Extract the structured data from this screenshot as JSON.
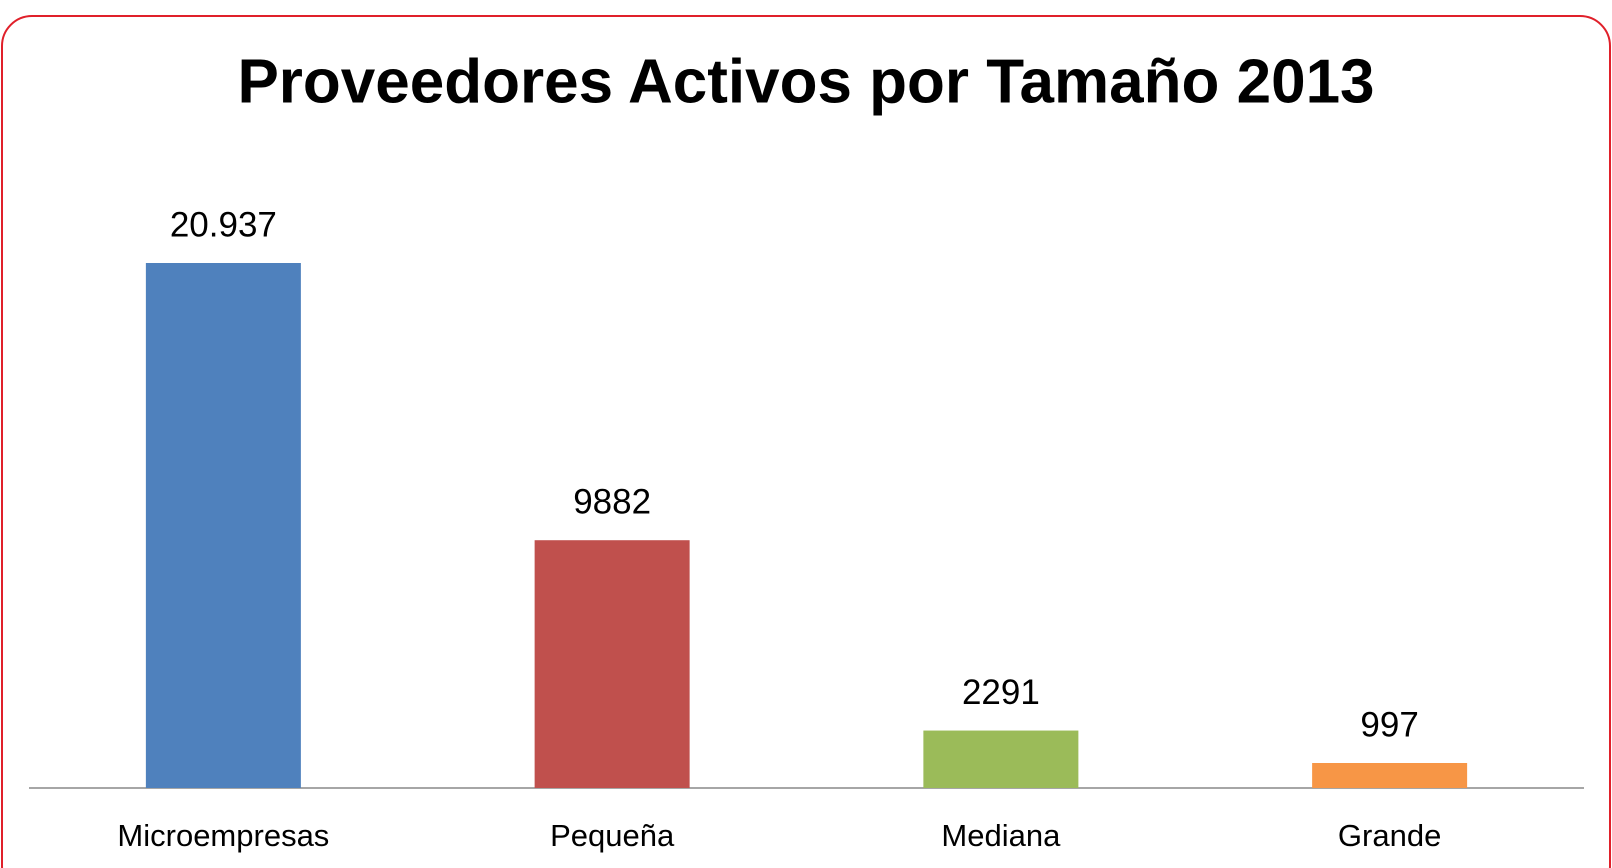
{
  "chart_data": {
    "type": "bar",
    "title": "Proveedores Activos por Tamaño 2013",
    "categories": [
      "Microempresas",
      "Pequeña",
      "Mediana",
      "Grande"
    ],
    "values": [
      20937,
      9882,
      2291,
      997
    ],
    "value_labels": [
      "20.937",
      "9882",
      "2291",
      "997"
    ],
    "colors": [
      "#4f81bd",
      "#c0504d",
      "#9bbb59",
      "#f79646"
    ],
    "grid": false
  }
}
